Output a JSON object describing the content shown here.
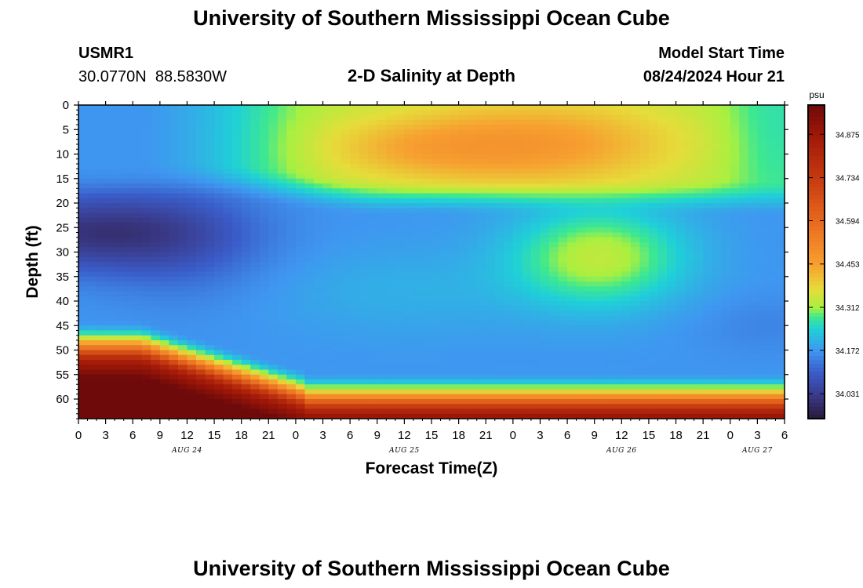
{
  "page": {
    "title_top": "University of Southern Mississippi Ocean Cube",
    "title_bottom": "University of Southern Mississippi Ocean Cube",
    "station_id": "USMR1",
    "station_coords": "30.0770N  88.5830W",
    "model_start_label": "Model Start Time",
    "model_start_value": "08/24/2024 Hour 21"
  },
  "chart_data": {
    "type": "heatmap",
    "title": "2-D Salinity at Depth",
    "xlabel": "Forecast Time(Z)",
    "ylabel": "Depth (ft)",
    "colorbar_unit": "psu",
    "x_tick_labels": [
      "0",
      "3",
      "6",
      "9",
      "12",
      "15",
      "18",
      "21",
      "0",
      "3",
      "6",
      "9",
      "12",
      "15",
      "18",
      "21",
      "0",
      "3",
      "6",
      "9",
      "12",
      "15",
      "18",
      "21",
      "0",
      "3",
      "6"
    ],
    "date_labels": [
      {
        "label": "AUG 24",
        "hour_index": 12
      },
      {
        "label": "AUG 25",
        "hour_index": 36
      },
      {
        "label": "AUG 26",
        "hour_index": 60
      },
      {
        "label": "AUG 27",
        "hour_index": 75
      }
    ],
    "x_range_hours": [
      0,
      78
    ],
    "y_ticks": [
      0,
      5,
      10,
      15,
      20,
      25,
      30,
      35,
      40,
      45,
      50,
      55,
      60
    ],
    "y_range_ft": [
      0,
      64
    ],
    "colorbar_ticks": [
      "34.875",
      "34.734",
      "34.594",
      "34.453",
      "34.312",
      "34.172",
      "34.031"
    ],
    "colorbar_range": [
      33.95,
      34.97
    ],
    "colormap": [
      [
        33.95,
        "#2a1838"
      ],
      [
        34.03,
        "#3a3c8e"
      ],
      [
        34.1,
        "#3a5cc8"
      ],
      [
        34.17,
        "#3f96f0"
      ],
      [
        34.24,
        "#1fd0d8"
      ],
      [
        34.28,
        "#3ee890"
      ],
      [
        34.31,
        "#a8f040"
      ],
      [
        34.37,
        "#e6dc3a"
      ],
      [
        34.45,
        "#f7a030"
      ],
      [
        34.59,
        "#e86a20"
      ],
      [
        34.73,
        "#c63a10"
      ],
      [
        34.87,
        "#a01808"
      ],
      [
        34.97,
        "#6e0a0a"
      ]
    ]
  }
}
